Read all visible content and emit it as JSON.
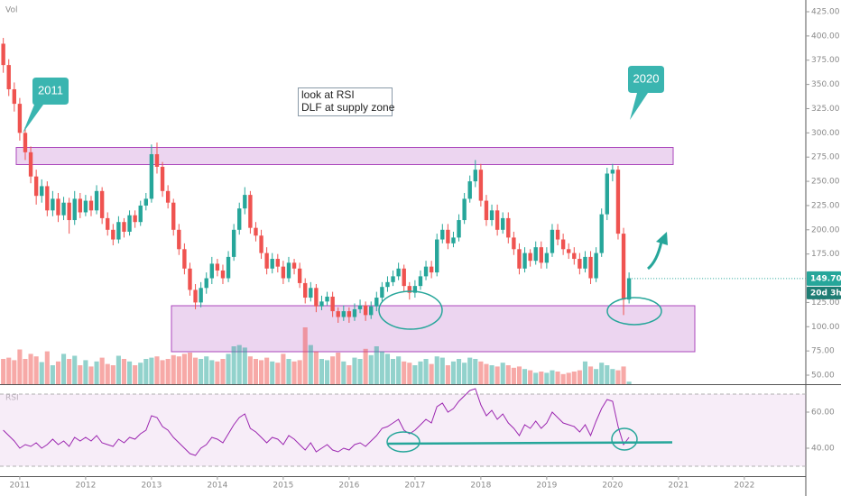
{
  "chart_data": {
    "type": "candlestick",
    "volume_label": "Vol",
    "rsi_label": "RSI",
    "annotations": [
      "2011",
      "2020",
      "look at RSI",
      "DLF at supply zone"
    ],
    "last_price": {
      "value": 149.7,
      "label": "149.70"
    },
    "countdown": "20d 3h",
    "up_color": "#26a69a",
    "down_color": "#ef5350",
    "rsi_color": "#9c27b0",
    "xlim": [
      -0.6,
      146.2
    ],
    "xticks": [
      {
        "value": 3,
        "label": "2011"
      },
      {
        "value": 15,
        "label": "2012"
      },
      {
        "value": 27,
        "label": "2013"
      },
      {
        "value": 39,
        "label": "2014"
      },
      {
        "value": 51,
        "label": "2015"
      },
      {
        "value": 63,
        "label": "2016"
      },
      {
        "value": 75,
        "label": "2017"
      },
      {
        "value": 87,
        "label": "2018"
      },
      {
        "value": 99,
        "label": "2019"
      },
      {
        "value": 111,
        "label": "2020"
      },
      {
        "value": 123,
        "label": "2021"
      },
      {
        "value": 135,
        "label": "2022"
      }
    ],
    "ylim": [
      40.7,
      437.1
    ],
    "yticks": [
      {
        "value": 425,
        "label": "425.00"
      },
      {
        "value": 400,
        "label": "400.00"
      },
      {
        "value": 375,
        "label": "375.00"
      },
      {
        "value": 350,
        "label": "350.00"
      },
      {
        "value": 325,
        "label": "325.00"
      },
      {
        "value": 300,
        "label": "300.00"
      },
      {
        "value": 275,
        "label": "275.00"
      },
      {
        "value": 250,
        "label": "250.00"
      },
      {
        "value": 225,
        "label": "225.00"
      },
      {
        "value": 200,
        "label": "200.00"
      },
      {
        "value": 175,
        "label": "175.00"
      },
      {
        "value": 125,
        "label": "125.00"
      },
      {
        "value": 100,
        "label": "100.00"
      },
      {
        "value": 75,
        "label": "75.00"
      },
      {
        "value": 50,
        "label": "50.00"
      }
    ],
    "ohlc": [
      [
        392,
        398,
        362,
        370
      ],
      [
        370,
        376,
        338,
        345
      ],
      [
        345,
        352,
        322,
        330
      ],
      [
        330,
        336,
        292,
        300
      ],
      [
        300,
        306,
        272,
        280
      ],
      [
        280,
        286,
        248,
        255
      ],
      [
        255,
        262,
        226,
        235
      ],
      [
        235,
        252,
        228,
        245
      ],
      [
        245,
        250,
        214,
        220
      ],
      [
        220,
        240,
        214,
        232
      ],
      [
        232,
        238,
        208,
        215
      ],
      [
        215,
        234,
        210,
        228
      ],
      [
        228,
        233,
        196,
        210
      ],
      [
        210,
        240,
        205,
        232
      ],
      [
        232,
        238,
        212,
        218
      ],
      [
        218,
        236,
        214,
        230
      ],
      [
        230,
        235,
        214,
        220
      ],
      [
        220,
        246,
        216,
        240
      ],
      [
        240,
        244,
        206,
        212
      ],
      [
        212,
        218,
        194,
        200
      ],
      [
        200,
        206,
        184,
        190
      ],
      [
        190,
        214,
        186,
        208
      ],
      [
        208,
        212,
        192,
        198
      ],
      [
        198,
        220,
        194,
        215
      ],
      [
        215,
        220,
        202,
        208
      ],
      [
        208,
        230,
        204,
        225
      ],
      [
        225,
        238,
        220,
        232
      ],
      [
        232,
        288,
        228,
        278
      ],
      [
        278,
        290,
        258,
        265
      ],
      [
        265,
        270,
        234,
        240
      ],
      [
        240,
        246,
        222,
        228
      ],
      [
        228,
        232,
        194,
        200
      ],
      [
        200,
        206,
        174,
        180
      ],
      [
        180,
        186,
        154,
        160
      ],
      [
        160,
        166,
        132,
        138
      ],
      [
        138,
        144,
        118,
        125
      ],
      [
        125,
        146,
        120,
        140
      ],
      [
        140,
        156,
        134,
        150
      ],
      [
        150,
        172,
        144,
        165
      ],
      [
        165,
        170,
        152,
        158
      ],
      [
        158,
        164,
        144,
        150
      ],
      [
        150,
        178,
        146,
        172
      ],
      [
        172,
        206,
        168,
        200
      ],
      [
        200,
        228,
        195,
        222
      ],
      [
        222,
        244,
        216,
        236
      ],
      [
        236,
        240,
        196,
        202
      ],
      [
        202,
        208,
        188,
        194
      ],
      [
        194,
        200,
        170,
        176
      ],
      [
        176,
        182,
        154,
        160
      ],
      [
        160,
        176,
        155,
        170
      ],
      [
        170,
        175,
        156,
        162
      ],
      [
        162,
        168,
        144,
        150
      ],
      [
        150,
        172,
        146,
        166
      ],
      [
        166,
        170,
        154,
        160
      ],
      [
        160,
        166,
        140,
        145
      ],
      [
        145,
        150,
        124,
        130
      ],
      [
        130,
        146,
        126,
        140
      ],
      [
        140,
        144,
        115,
        121
      ],
      [
        121,
        132,
        117,
        126
      ],
      [
        126,
        136,
        122,
        131
      ],
      [
        131,
        136,
        110,
        116
      ],
      [
        116,
        120,
        104,
        110
      ],
      [
        110,
        122,
        106,
        116
      ],
      [
        116,
        120,
        104,
        110
      ],
      [
        110,
        124,
        106,
        118
      ],
      [
        118,
        128,
        114,
        122
      ],
      [
        122,
        126,
        106,
        112
      ],
      [
        112,
        126,
        108,
        121
      ],
      [
        121,
        136,
        116,
        130
      ],
      [
        130,
        146,
        126,
        141
      ],
      [
        141,
        152,
        136,
        146
      ],
      [
        146,
        158,
        142,
        152
      ],
      [
        152,
        166,
        148,
        160
      ],
      [
        160,
        164,
        136,
        142
      ],
      [
        142,
        146,
        128,
        135
      ],
      [
        135,
        148,
        130,
        142
      ],
      [
        142,
        158,
        138,
        152
      ],
      [
        152,
        168,
        148,
        162
      ],
      [
        162,
        168,
        150,
        156
      ],
      [
        156,
        196,
        152,
        190
      ],
      [
        190,
        206,
        186,
        200
      ],
      [
        200,
        206,
        180,
        186
      ],
      [
        186,
        198,
        182,
        192
      ],
      [
        192,
        216,
        188,
        210
      ],
      [
        210,
        238,
        206,
        232
      ],
      [
        232,
        256,
        228,
        250
      ],
      [
        250,
        272,
        244,
        262
      ],
      [
        262,
        268,
        224,
        230
      ],
      [
        230,
        236,
        204,
        210
      ],
      [
        210,
        226,
        204,
        220
      ],
      [
        220,
        226,
        194,
        200
      ],
      [
        200,
        218,
        196,
        212
      ],
      [
        212,
        218,
        186,
        192
      ],
      [
        192,
        198,
        174,
        180
      ],
      [
        180,
        186,
        154,
        160
      ],
      [
        160,
        182,
        156,
        176
      ],
      [
        176,
        180,
        162,
        168
      ],
      [
        168,
        188,
        164,
        182
      ],
      [
        182,
        188,
        160,
        166
      ],
      [
        166,
        182,
        160,
        176
      ],
      [
        176,
        206,
        172,
        200
      ],
      [
        200,
        206,
        184,
        190
      ],
      [
        190,
        196,
        174,
        180
      ],
      [
        180,
        186,
        170,
        176
      ],
      [
        176,
        182,
        164,
        170
      ],
      [
        170,
        176,
        154,
        160
      ],
      [
        160,
        178,
        156,
        172
      ],
      [
        172,
        178,
        144,
        150
      ],
      [
        150,
        182,
        146,
        176
      ],
      [
        176,
        222,
        172,
        216
      ],
      [
        216,
        264,
        210,
        258
      ],
      [
        258,
        268,
        250,
        262
      ],
      [
        262,
        266,
        190,
        196
      ],
      [
        196,
        202,
        112,
        128
      ],
      [
        128,
        156,
        124,
        150
      ]
    ],
    "vlim": [
      0,
      100
    ],
    "volume": [
      40,
      42,
      38,
      55,
      40,
      48,
      44,
      35,
      52,
      30,
      36,
      48,
      40,
      45,
      30,
      38,
      28,
      36,
      42,
      32,
      30,
      45,
      40,
      36,
      30,
      34,
      40,
      42,
      44,
      38,
      40,
      46,
      44,
      48,
      50,
      42,
      40,
      44,
      38,
      36,
      40,
      48,
      60,
      62,
      58,
      44,
      40,
      38,
      42,
      36,
      34,
      48,
      40,
      36,
      38,
      90,
      62,
      52,
      40,
      38,
      44,
      50,
      36,
      30,
      42,
      40,
      56,
      46,
      60,
      52,
      48,
      40,
      44,
      36,
      34,
      30,
      36,
      40,
      32,
      44,
      42,
      30,
      36,
      40,
      34,
      42,
      40,
      36,
      32,
      30,
      28,
      34,
      30,
      26,
      28,
      24,
      22,
      18,
      20,
      18,
      22,
      20,
      16,
      18,
      20,
      22,
      36,
      28,
      24,
      34,
      30,
      24,
      22,
      28,
      4
    ],
    "rsi_lim": [
      24.5,
      74.5
    ],
    "rsi_ticks": [
      {
        "value": 60,
        "label": "60.00"
      },
      {
        "value": 40,
        "label": "40.00"
      }
    ],
    "rsi_bands": [
      30,
      70
    ],
    "rsi": [
      50,
      47,
      44,
      40,
      42,
      41,
      43,
      40,
      42,
      45,
      42,
      44,
      41,
      46,
      44,
      46,
      44,
      47,
      43,
      42,
      41,
      45,
      43,
      46,
      45,
      48,
      50,
      58,
      57,
      52,
      50,
      46,
      43,
      40,
      37,
      36,
      40,
      42,
      46,
      45,
      43,
      48,
      53,
      57,
      59,
      51,
      49,
      46,
      43,
      46,
      45,
      42,
      47,
      45,
      42,
      39,
      43,
      38,
      40,
      42,
      39,
      38,
      40,
      39,
      42,
      43,
      41,
      44,
      47,
      51,
      52,
      54,
      56,
      50,
      48,
      50,
      53,
      56,
      54,
      63,
      65,
      60,
      62,
      66,
      69,
      72,
      73,
      64,
      58,
      61,
      56,
      59,
      54,
      51,
      47,
      53,
      51,
      55,
      51,
      54,
      60,
      57,
      54,
      53,
      52,
      49,
      53,
      47,
      55,
      62,
      67,
      66,
      52,
      42,
      46
    ]
  }
}
